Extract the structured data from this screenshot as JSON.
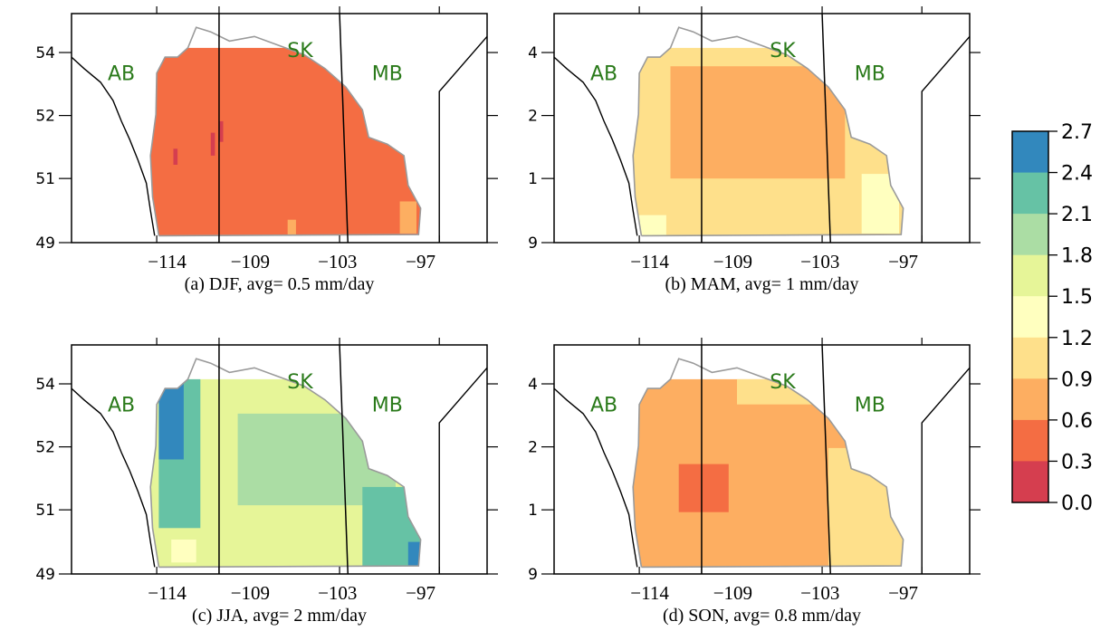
{
  "figure": {
    "panels": [
      {
        "id": "a",
        "caption": "(a) DJF, avg= 0.5 mm/day",
        "season": "DJF",
        "avg_mm_per_day": 0.5,
        "y_tick_labels": [
          "54",
          "52",
          "51",
          "49"
        ],
        "x_tick_labels": [
          "−114",
          "−109",
          "−103",
          "−97"
        ],
        "province_labels": [
          "AB",
          "SK",
          "MB"
        ],
        "dominant_class": "0.3-0.6",
        "secondary_classes": [
          "0.0-0.3",
          "0.6-0.9"
        ]
      },
      {
        "id": "b",
        "caption": "(b) MAM, avg= 1 mm/day",
        "season": "MAM",
        "avg_mm_per_day": 1,
        "y_tick_labels": [
          "4",
          "2",
          "1",
          "9"
        ],
        "x_tick_labels": [
          "−114",
          "−109",
          "−103",
          "−97"
        ],
        "province_labels": [
          "AB",
          "SK",
          "MB"
        ],
        "dominant_class": "0.9-1.2",
        "secondary_classes": [
          "0.6-0.9",
          "1.2-1.5"
        ]
      },
      {
        "id": "c",
        "caption": "(c) JJA, avg= 2 mm/day",
        "season": "JJA",
        "avg_mm_per_day": 2,
        "y_tick_labels": [
          "54",
          "52",
          "51",
          "49"
        ],
        "x_tick_labels": [
          "−114",
          "−109",
          "−103",
          "−97"
        ],
        "province_labels": [
          "AB",
          "SK",
          "MB"
        ],
        "dominant_class": "1.5-1.8",
        "secondary_classes": [
          "1.8-2.1",
          "2.1-2.4",
          "2.4-2.7"
        ]
      },
      {
        "id": "d",
        "caption": "(d) SON, avg= 0.8 mm/day",
        "season": "SON",
        "avg_mm_per_day": 0.8,
        "y_tick_labels": [
          "4",
          "2",
          "1",
          "9"
        ],
        "x_tick_labels": [
          "−114",
          "−109",
          "−103",
          "−97"
        ],
        "province_labels": [
          "AB",
          "SK",
          "MB"
        ],
        "dominant_class": "0.6-0.9",
        "secondary_classes": [
          "0.3-0.6",
          "0.9-1.2"
        ]
      }
    ],
    "colorbar": {
      "tick_labels": [
        "2.7",
        "2.4",
        "2.1",
        "1.8",
        "1.5",
        "1.2",
        "0.9",
        "0.6",
        "0.3",
        "0.0"
      ],
      "classes": [
        {
          "range": "0.0-0.3",
          "color": "#d53e4f"
        },
        {
          "range": "0.3-0.6",
          "color": "#f46d43"
        },
        {
          "range": "0.6-0.9",
          "color": "#fdae61"
        },
        {
          "range": "0.9-1.2",
          "color": "#fee08b"
        },
        {
          "range": "1.2-1.5",
          "color": "#ffffbf"
        },
        {
          "range": "1.5-1.8",
          "color": "#e6f598"
        },
        {
          "range": "1.8-2.1",
          "color": "#abdda4"
        },
        {
          "range": "2.1-2.4",
          "color": "#66c2a5"
        },
        {
          "range": "2.4-2.7",
          "color": "#3288bd"
        }
      ]
    }
  }
}
